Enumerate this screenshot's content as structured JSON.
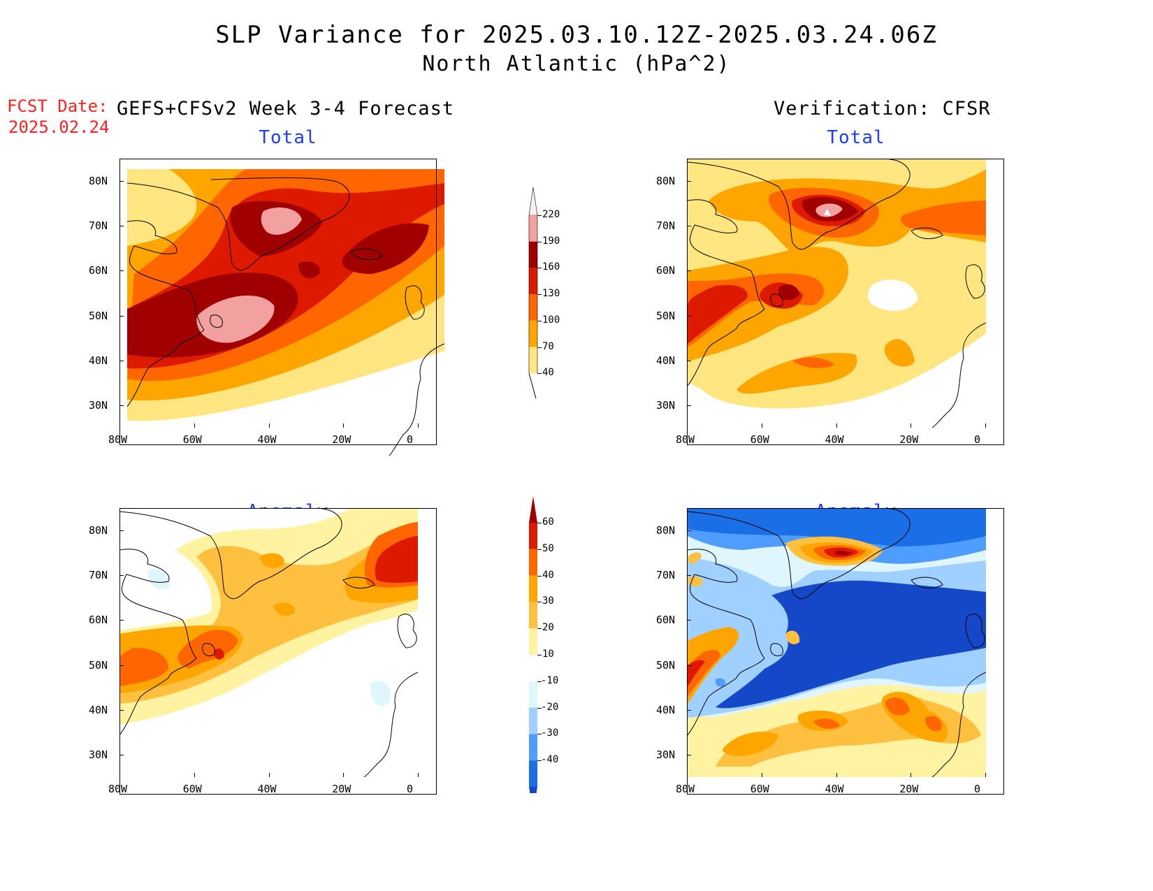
{
  "title": "SLP Variance for 2025.03.10.12Z-2025.03.24.06Z",
  "subtitle": "North Atlantic (hPa^2)",
  "fcst_label": "FCST Date:",
  "fcst_date": "2025.02.24",
  "left_heading": "GEFS+CFSv2 Week 3-4 Forecast",
  "right_heading": "Verification: CFSR",
  "panels": {
    "fc_total": {
      "title": "Total"
    },
    "ver_total": {
      "title": "Total"
    },
    "fc_anom": {
      "title": "Anomaly"
    },
    "ver_anom": {
      "title": "Anomaly"
    }
  },
  "axes": {
    "lon_labels": [
      "80W",
      "60W",
      "40W",
      "20W",
      "0"
    ],
    "lat_labels": [
      "80N",
      "70N",
      "60N",
      "50N",
      "40N",
      "30N"
    ],
    "lon_range": [
      -80,
      0
    ],
    "lat_range": [
      25,
      85
    ]
  },
  "colorbar_total": {
    "levels": [
      "220",
      "190",
      "160",
      "130",
      "100",
      "70",
      "40"
    ],
    "colors": [
      "#fff0f0",
      "#f3a0a0",
      "#a00000",
      "#dd1a00",
      "#ff6600",
      "#ffa500",
      "#ffe680"
    ]
  },
  "colorbar_anom": {
    "levels": [
      "60",
      "50",
      "40",
      "30",
      "20",
      "10",
      "-10",
      "-20",
      "-30",
      "-40"
    ],
    "colors": [
      "#a00000",
      "#dd1a00",
      "#ff6600",
      "#ffa500",
      "#ffc040",
      "#fff2a0",
      "#ffffff",
      "#e0f6ff",
      "#9fd0ff",
      "#4f9eff",
      "#1a6ee6",
      "#1448c8"
    ]
  }
}
